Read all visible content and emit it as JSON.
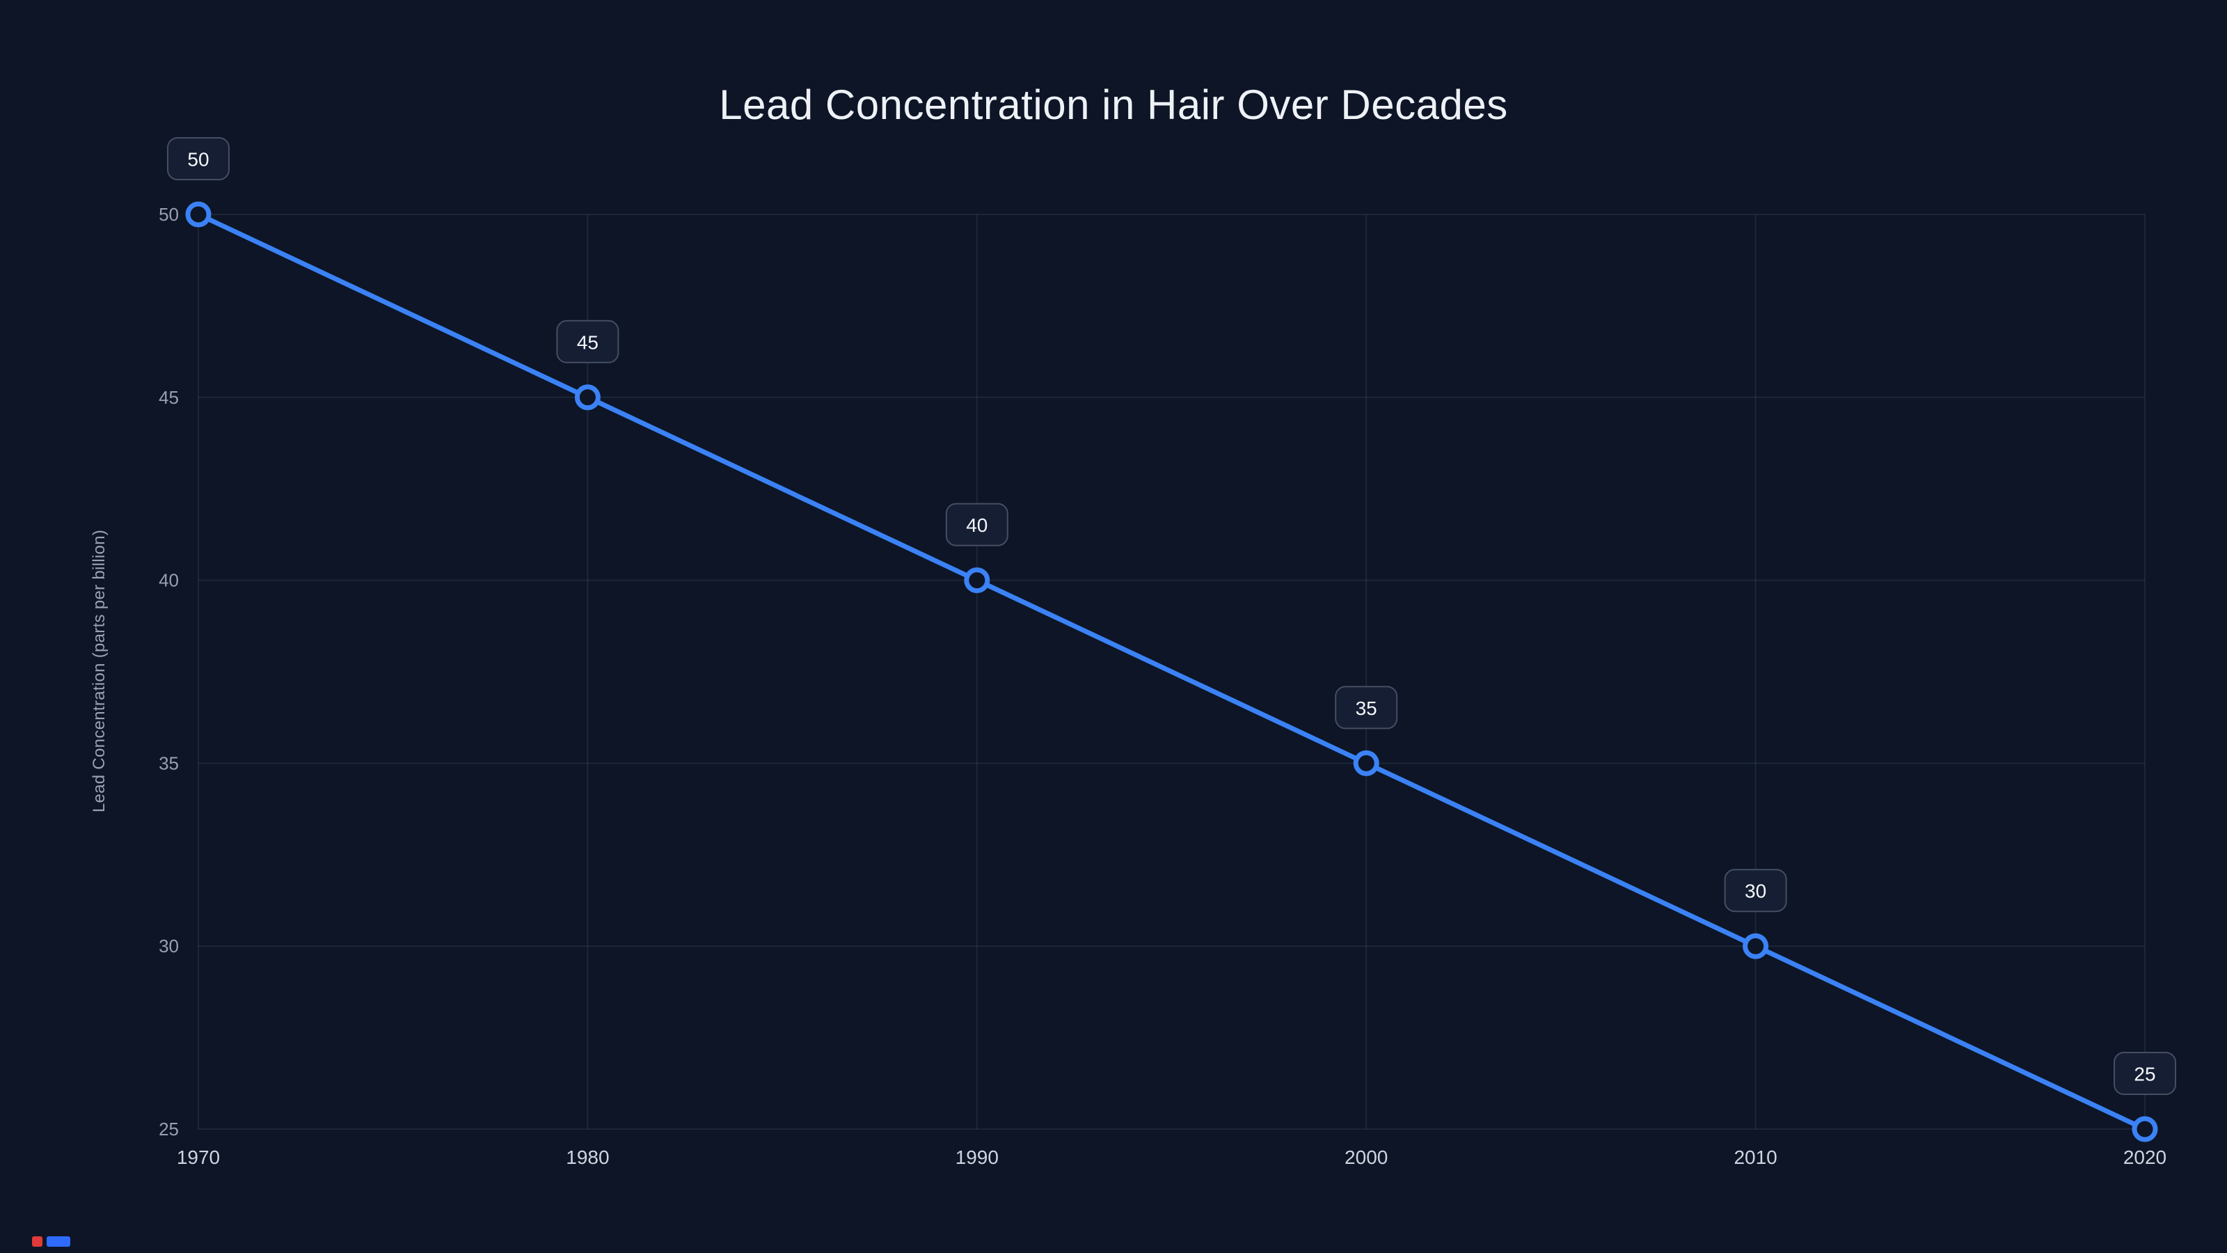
{
  "page": {
    "background": "#0d1526",
    "artifact_red": "#e03a3a",
    "artifact_blue": "#2f6bff"
  },
  "chart_data": {
    "type": "line",
    "title": "Lead Concentration in Hair Over Decades",
    "xlabel": "",
    "ylabel": "Lead Concentration (parts per billion)",
    "x": [
      1970,
      1980,
      1990,
      2000,
      2010,
      2020
    ],
    "series": [
      {
        "name": "Lead Concentration (parts per billion)",
        "values": [
          50,
          45,
          40,
          35,
          30,
          25
        ]
      }
    ],
    "data_labels": [
      "50",
      "45",
      "40",
      "35",
      "30",
      "25"
    ],
    "xticks": [
      "1970",
      "1980",
      "1990",
      "2000",
      "2010",
      "2020"
    ],
    "yticks": [
      25,
      30,
      35,
      40,
      45,
      50
    ],
    "xlim": [
      1970,
      2020
    ],
    "ylim": [
      25,
      50
    ],
    "grid": true,
    "legend": "none",
    "colors": {
      "line": "#3b82f6",
      "point_stroke": "#3b82f6",
      "point_fill": "#0d1526",
      "grid": "rgba(148,163,184,0.12)",
      "badge_bg": "#151e33",
      "badge_border": "#454e63",
      "badge_text": "#f5f7fa",
      "ytick_text": "#97a0b3",
      "xtick_text": "#cfd5e0",
      "title_text": "#eef1f6",
      "axis_label_text": "#9aa2b4"
    }
  }
}
